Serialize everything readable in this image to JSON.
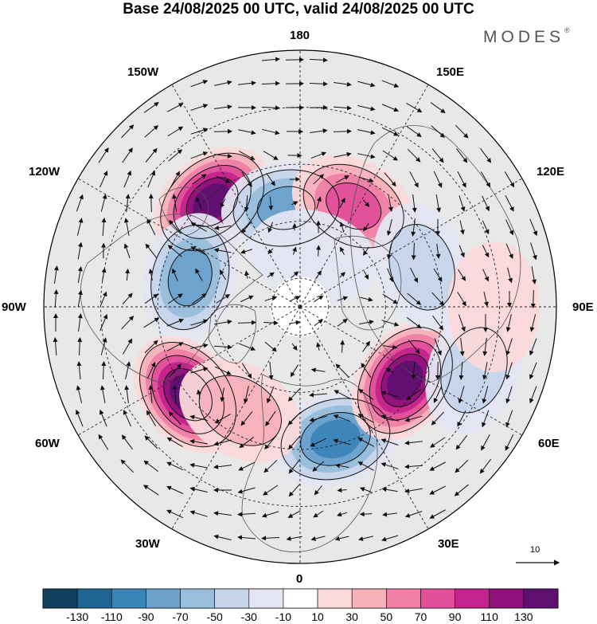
{
  "title": "Base 24/08/2025 00 UTC, valid 24/08/2025 00 UTC",
  "brand": {
    "name": "MODES",
    "mark": "®"
  },
  "longitude_labels": {
    "top": "180",
    "bottom": "0",
    "left": "90W",
    "right": "90E",
    "upper_left": "150W",
    "upper_right": "150E",
    "mid_upper_left": "120W",
    "mid_upper_right": "120E",
    "mid_lower_left": "60W",
    "mid_lower_right": "60E",
    "lower_left": "30W",
    "lower_right": "30E"
  },
  "reference_vector": {
    "label": "10"
  },
  "colorbar": {
    "colors": [
      "#12405f",
      "#1f6594",
      "#3b84b8",
      "#6ba1cb",
      "#98bedc",
      "#c6d5ea",
      "#e4e5f2",
      "#ffffff",
      "#fbd9da",
      "#f6b1bb",
      "#ef7fa7",
      "#e04f9a",
      "#c4238c",
      "#90117a",
      "#5e1070"
    ],
    "ticks": [
      "-130",
      "-110",
      "-90",
      "-70",
      "-50",
      "-30",
      "-10",
      "10",
      "30",
      "50",
      "70",
      "90",
      "110",
      "130"
    ]
  },
  "anomaly_centres": [
    {
      "lon": -140,
      "lat": 42,
      "value": 140
    },
    {
      "lon": -172,
      "lat": 55,
      "value": -80
    },
    {
      "lon": -105,
      "lat": 50,
      "value": -90
    },
    {
      "lon": -52,
      "lat": 40,
      "value": 150
    },
    {
      "lon": 15,
      "lat": 42,
      "value": -100
    },
    {
      "lon": 55,
      "lat": 45,
      "value": 145
    },
    {
      "lon": 152,
      "lat": 50,
      "value": 90
    },
    {
      "lon": 108,
      "lat": 45,
      "value": -50
    },
    {
      "lon": 70,
      "lat": 25,
      "value": -50
    },
    {
      "lon": 90,
      "lat": 22,
      "value": 25
    },
    {
      "lon": -30,
      "lat": 48,
      "value": 45
    },
    {
      "lon": 165,
      "lat": 72,
      "value": -20
    }
  ]
}
